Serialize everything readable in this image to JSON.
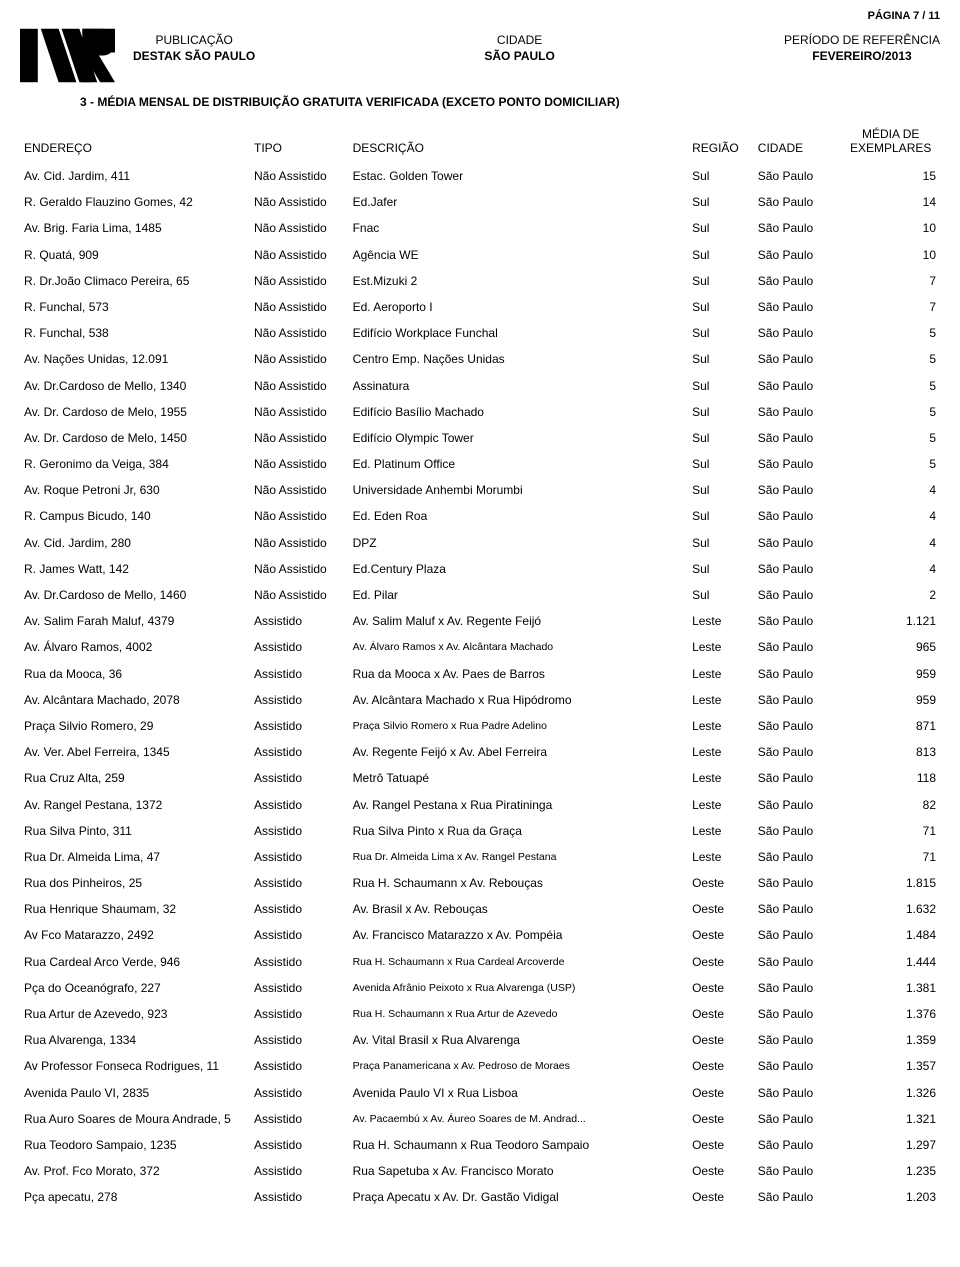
{
  "page_label": "PÁGINA 7 / 11",
  "header": {
    "col1_label": "PUBLICAÇÃO",
    "col1_value": "DESTAK SÃO PAULO",
    "col2_label": "CIDADE",
    "col2_value": "SÃO PAULO",
    "col3_label": "PERÍODO DE REFERÊNCIA",
    "col3_value": "FEVEREIRO/2013"
  },
  "section_title": "3 - MÉDIA MENSAL DE DISTRIBUIÇÃO GRATUITA VERIFICADA (EXCETO PONTO DOMICILIAR)",
  "columns": {
    "endereco": "ENDEREÇO",
    "tipo": "TIPO",
    "descricao": "DESCRIÇÃO",
    "regiao": "REGIÃO",
    "cidade": "CIDADE",
    "media_l1": "MÉDIA DE",
    "media_l2": "EXEMPLARES"
  },
  "rows": [
    {
      "e": "Av. Cid. Jardim, 411",
      "t": "Não Assistido",
      "d": "Estac. Golden Tower",
      "r": "Sul",
      "c": "São Paulo",
      "m": "15"
    },
    {
      "e": "R. Geraldo Flauzino Gomes, 42",
      "t": "Não Assistido",
      "d": "Ed.Jafer",
      "r": "Sul",
      "c": "São Paulo",
      "m": "14"
    },
    {
      "e": "Av. Brig. Faria Lima, 1485",
      "t": "Não Assistido",
      "d": "Fnac",
      "r": "Sul",
      "c": "São Paulo",
      "m": "10"
    },
    {
      "e": "R. Quatá, 909",
      "t": "Não Assistido",
      "d": "Agência WE",
      "r": "Sul",
      "c": "São Paulo",
      "m": "10"
    },
    {
      "e": "R. Dr.João Climaco Pereira, 65",
      "t": "Não Assistido",
      "d": "Est.Mizuki 2",
      "r": "Sul",
      "c": "São Paulo",
      "m": "7"
    },
    {
      "e": "R. Funchal, 573",
      "t": "Não Assistido",
      "d": "Ed. Aeroporto I",
      "r": "Sul",
      "c": "São Paulo",
      "m": "7"
    },
    {
      "e": "R. Funchal, 538",
      "t": "Não Assistido",
      "d": "Edifício Workplace Funchal",
      "r": "Sul",
      "c": "São Paulo",
      "m": "5"
    },
    {
      "e": "Av. Nações Unidas, 12.091",
      "t": "Não Assistido",
      "d": "Centro Emp. Nações Unidas",
      "r": "Sul",
      "c": "São Paulo",
      "m": "5"
    },
    {
      "e": "Av. Dr.Cardoso de Mello, 1340",
      "t": "Não Assistido",
      "d": "Assinatura",
      "r": "Sul",
      "c": "São Paulo",
      "m": "5"
    },
    {
      "e": "Av. Dr. Cardoso de Melo, 1955",
      "t": "Não Assistido",
      "d": "Edifício Basílio Machado",
      "r": "Sul",
      "c": "São Paulo",
      "m": "5"
    },
    {
      "e": "Av. Dr. Cardoso de Melo, 1450",
      "t": "Não Assistido",
      "d": "Edifício Olympic Tower",
      "r": "Sul",
      "c": "São Paulo",
      "m": "5"
    },
    {
      "e": "R. Geronimo da Veiga, 384",
      "t": "Não Assistido",
      "d": "Ed. Platinum Office",
      "r": "Sul",
      "c": "São Paulo",
      "m": "5"
    },
    {
      "e": "Av. Roque Petroni Jr, 630",
      "t": "Não Assistido",
      "d": "Universidade Anhembi Morumbi",
      "r": "Sul",
      "c": "São Paulo",
      "m": "4"
    },
    {
      "e": "R. Campus Bicudo, 140",
      "t": "Não Assistido",
      "d": "Ed. Eden Roa",
      "r": "Sul",
      "c": "São Paulo",
      "m": "4"
    },
    {
      "e": "Av. Cid. Jardim, 280",
      "t": "Não Assistido",
      "d": "DPZ",
      "r": "Sul",
      "c": "São Paulo",
      "m": "4"
    },
    {
      "e": "R. James Watt, 142",
      "t": "Não Assistido",
      "d": "Ed.Century Plaza",
      "r": "Sul",
      "c": "São Paulo",
      "m": "4"
    },
    {
      "e": "Av. Dr.Cardoso de Mello, 1460",
      "t": "Não Assistido",
      "d": "Ed. Pilar",
      "r": "Sul",
      "c": "São Paulo",
      "m": "2"
    },
    {
      "e": "Av. Salim Farah Maluf, 4379",
      "t": "Assistido",
      "d": "Av. Salim Maluf x Av. Regente Feijó",
      "r": "Leste",
      "c": "São Paulo",
      "m": "1.121"
    },
    {
      "e": "Av. Álvaro Ramos, 4002",
      "t": "Assistido",
      "d": "Av. Álvaro Ramos x Av. Alcântara Machado",
      "d_small": true,
      "r": "Leste",
      "c": "São Paulo",
      "m": "965"
    },
    {
      "e": "Rua da Mooca, 36",
      "t": "Assistido",
      "d": "Rua da Mooca x Av. Paes de Barros",
      "r": "Leste",
      "c": "São Paulo",
      "m": "959"
    },
    {
      "e": "Av. Alcântara Machado, 2078",
      "t": "Assistido",
      "d": "Av. Alcântara Machado x Rua Hipódromo",
      "r": "Leste",
      "c": "São Paulo",
      "m": "959"
    },
    {
      "e": "Praça Silvio Romero, 29",
      "t": "Assistido",
      "d": "Praça Silvio Romero x Rua Padre Adelino",
      "d_small": true,
      "r": "Leste",
      "c": "São Paulo",
      "m": "871"
    },
    {
      "e": "Av. Ver. Abel Ferreira, 1345",
      "t": "Assistido",
      "d": "Av. Regente Feijó x Av. Abel Ferreira",
      "r": "Leste",
      "c": "São Paulo",
      "m": "813"
    },
    {
      "e": "Rua Cruz Alta, 259",
      "t": "Assistido",
      "d": "Metrô Tatuapé",
      "r": "Leste",
      "c": "São Paulo",
      "m": "118"
    },
    {
      "e": "Av. Rangel Pestana, 1372",
      "t": "Assistido",
      "d": "Av. Rangel Pestana x Rua Piratininga",
      "r": "Leste",
      "c": "São Paulo",
      "m": "82"
    },
    {
      "e": "Rua Silva Pinto, 311",
      "t": "Assistido",
      "d": "Rua Silva Pinto x Rua da Graça",
      "r": "Leste",
      "c": "São Paulo",
      "m": "71"
    },
    {
      "e": "Rua Dr. Almeida Lima, 47",
      "t": "Assistido",
      "d": "Rua Dr. Almeida Lima x Av. Rangel Pestana",
      "d_small": true,
      "r": "Leste",
      "c": "São Paulo",
      "m": "71"
    },
    {
      "e": "Rua dos Pinheiros, 25",
      "t": "Assistido",
      "d": "Rua H. Schaumann x Av. Rebouças",
      "r": "Oeste",
      "c": "São Paulo",
      "m": "1.815"
    },
    {
      "e": "Rua Henrique Shaumam, 32",
      "t": "Assistido",
      "d": "Av. Brasil x Av. Rebouças",
      "r": "Oeste",
      "c": "São Paulo",
      "m": "1.632"
    },
    {
      "e": "Av Fco Matarazzo, 2492",
      "t": "Assistido",
      "d": "Av. Francisco Matarazzo x Av. Pompéia",
      "r": "Oeste",
      "c": "São Paulo",
      "m": "1.484"
    },
    {
      "e": "Rua Cardeal Arco Verde, 946",
      "t": "Assistido",
      "d": "Rua H. Schaumann x Rua Cardeal Arcoverde",
      "d_small": true,
      "r": "Oeste",
      "c": "São Paulo",
      "m": "1.444"
    },
    {
      "e": "Pça do Oceanógrafo, 227",
      "t": "Assistido",
      "d": "Avenida Afrânio Peixoto x Rua Alvarenga (USP)",
      "d_small": true,
      "r": "Oeste",
      "c": "São Paulo",
      "m": "1.381"
    },
    {
      "e": "Rua Artur de Azevedo, 923",
      "t": "Assistido",
      "d": "Rua H. Schaumann x Rua Artur de Azevedo",
      "d_small": true,
      "r": "Oeste",
      "c": "São Paulo",
      "m": "1.376"
    },
    {
      "e": "Rua Alvarenga, 1334",
      "t": "Assistido",
      "d": "Av. Vital Brasil x Rua Alvarenga",
      "r": "Oeste",
      "c": "São Paulo",
      "m": "1.359"
    },
    {
      "e": "Av Professor Fonseca Rodrigues, 11",
      "t": "Assistido",
      "d": "Praça Panamericana x Av. Pedroso de Moraes",
      "d_small": true,
      "r": "Oeste",
      "c": "São Paulo",
      "m": "1.357"
    },
    {
      "e": "Avenida Paulo VI, 2835",
      "t": "Assistido",
      "d": "Avenida Paulo VI x Rua Lisboa",
      "r": "Oeste",
      "c": "São Paulo",
      "m": "1.326"
    },
    {
      "e": "Rua Auro Soares de Moura Andrade, 5",
      "t": "Assistido",
      "d": "Av. Pacaembú x Av. Áureo Soares de M. Andrad...",
      "d_small": true,
      "r": "Oeste",
      "c": "São Paulo",
      "m": "1.321"
    },
    {
      "e": "Rua Teodoro Sampaio, 1235",
      "t": "Assistido",
      "d": "Rua H. Schaumann x Rua Teodoro Sampaio",
      "d_multi": true,
      "r": "Oeste",
      "c": "São Paulo",
      "m": "1.297"
    },
    {
      "e": "Av. Prof. Fco Morato, 372",
      "t": "Assistido",
      "d": "Rua Sapetuba x Av. Francisco Morato",
      "r": "Oeste",
      "c": "São Paulo",
      "m": "1.235"
    },
    {
      "e": "Pça apecatu, 278",
      "t": "Assistido",
      "d": "Praça Apecatu x Av. Dr. Gastão Vidigal",
      "r": "Oeste",
      "c": "São Paulo",
      "m": "1.203"
    }
  ]
}
